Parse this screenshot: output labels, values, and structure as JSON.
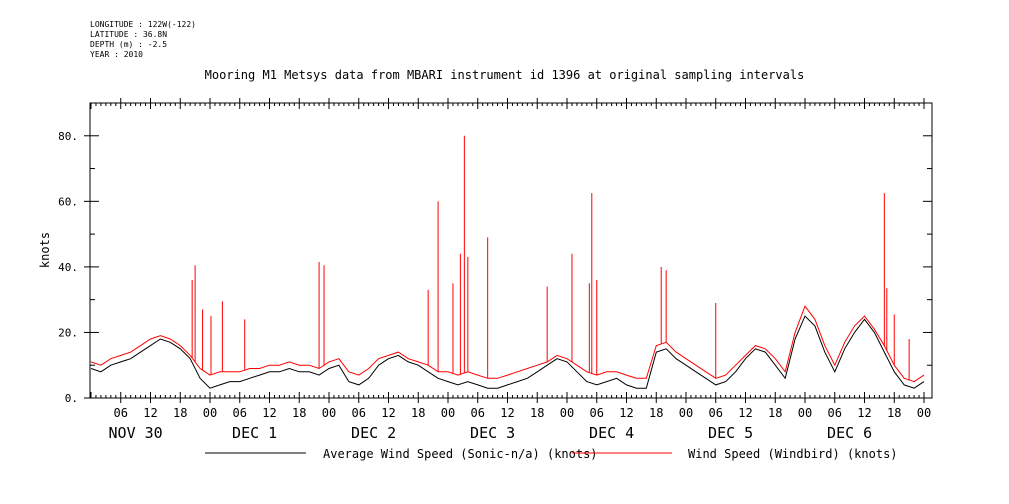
{
  "meta": {
    "longitude": "LONGITUDE : 122W(-122)",
    "latitude": "LATITUDE : 36.8N",
    "depth": "DEPTH (m) : -2.5",
    "year": "YEAR : 2010"
  },
  "chart_data": {
    "type": "line",
    "title": "Mooring M1 Metsys data from MBARI instrument id 1396 at original sampling intervals",
    "xlabel": "",
    "ylabel": "knots",
    "ylim": [
      0,
      90
    ],
    "y_ticks": [
      0,
      20,
      40,
      60,
      80
    ],
    "y_tick_labels": [
      "0.",
      "20.",
      "40.",
      "60.",
      "80."
    ],
    "xlim_hours": [
      0,
      168
    ],
    "hour_tick_labels": [
      "06",
      "12",
      "18",
      "00",
      "06",
      "12",
      "18",
      "00",
      "06",
      "12",
      "18",
      "00",
      "06",
      "12",
      "18",
      "00",
      "06",
      "12",
      "18",
      "00",
      "06",
      "12",
      "18",
      "00",
      "06",
      "12",
      "18",
      "00"
    ],
    "day_labels": [
      "NOV 30",
      "DEC  1",
      "DEC  2",
      "DEC  3",
      "DEC  4",
      "DEC  5",
      "DEC  6"
    ],
    "grid": false,
    "legend": "bottom",
    "series": [
      {
        "name": "Average Wind Speed (Sonic-n/a) (knots)",
        "color": "#000000",
        "x_hours": [
          0,
          2,
          4,
          6,
          8,
          10,
          12,
          14,
          16,
          18,
          20,
          22,
          24,
          26,
          28,
          30,
          32,
          34,
          36,
          38,
          40,
          42,
          44,
          46,
          48,
          50,
          52,
          54,
          56,
          58,
          60,
          62,
          64,
          66,
          68,
          70,
          72,
          74,
          76,
          78,
          80,
          82,
          84,
          86,
          88,
          90,
          92,
          94,
          96,
          98,
          100,
          102,
          104,
          106,
          108,
          110,
          112,
          114,
          116,
          118,
          120,
          122,
          124,
          126,
          128,
          130,
          132,
          134,
          136,
          138,
          140,
          142,
          144,
          146,
          148,
          150,
          152,
          154,
          156,
          158,
          160,
          162,
          164,
          166,
          168
        ],
        "values": [
          9,
          8,
          10,
          11,
          12,
          14,
          16,
          18,
          17,
          15,
          12,
          6,
          3,
          4,
          5,
          5,
          6,
          7,
          8,
          8,
          9,
          8,
          8,
          7,
          9,
          10,
          5,
          4,
          6,
          10,
          12,
          13,
          11,
          10,
          8,
          6,
          5,
          4,
          5,
          4,
          3,
          3,
          4,
          5,
          6,
          8,
          10,
          12,
          11,
          8,
          5,
          4,
          5,
          6,
          4,
          3,
          3,
          14,
          15,
          12,
          10,
          8,
          6,
          4,
          5,
          8,
          12,
          15,
          14,
          10,
          6,
          18,
          25,
          22,
          14,
          8,
          15,
          20,
          24,
          20,
          14,
          8,
          4,
          3,
          5
        ]
      },
      {
        "name": "Wind Speed (Windbird) (knots)",
        "color": "#ff0000",
        "x_hours": [
          0,
          2,
          4,
          6,
          8,
          10,
          12,
          14,
          16,
          18,
          20,
          22,
          24,
          26,
          28,
          30,
          32,
          34,
          36,
          38,
          40,
          42,
          44,
          46,
          48,
          50,
          52,
          54,
          56,
          58,
          60,
          62,
          64,
          66,
          68,
          70,
          72,
          74,
          76,
          78,
          80,
          82,
          84,
          86,
          88,
          90,
          92,
          94,
          96,
          98,
          100,
          102,
          104,
          106,
          108,
          110,
          112,
          114,
          116,
          118,
          120,
          122,
          124,
          126,
          128,
          130,
          132,
          134,
          136,
          138,
          140,
          142,
          144,
          146,
          148,
          150,
          152,
          154,
          156,
          158,
          160,
          162,
          164,
          166,
          168
        ],
        "values": [
          11,
          10,
          12,
          13,
          14,
          16,
          18,
          19,
          18,
          16,
          13,
          9,
          7,
          8,
          8,
          8,
          9,
          9,
          10,
          10,
          11,
          10,
          10,
          9,
          11,
          12,
          8,
          7,
          9,
          12,
          13,
          14,
          12,
          11,
          10,
          8,
          8,
          7,
          8,
          7,
          6,
          6,
          7,
          8,
          9,
          10,
          11,
          13,
          12,
          10,
          8,
          7,
          8,
          8,
          7,
          6,
          6,
          16,
          17,
          14,
          12,
          10,
          8,
          6,
          7,
          10,
          13,
          16,
          15,
          12,
          8,
          20,
          28,
          24,
          16,
          10,
          17,
          22,
          25,
          21,
          16,
          10,
          6,
          5,
          7
        ],
        "spikes": [
          {
            "x_hour": 20.4,
            "value": 36
          },
          {
            "x_hour": 21.0,
            "value": 40.5
          },
          {
            "x_hour": 22.5,
            "value": 27
          },
          {
            "x_hour": 24.2,
            "value": 25
          },
          {
            "x_hour": 26.5,
            "value": 29.5
          },
          {
            "x_hour": 31.0,
            "value": 24
          },
          {
            "x_hour": 46.0,
            "value": 41.5
          },
          {
            "x_hour": 47.0,
            "value": 40.5
          },
          {
            "x_hour": 68.0,
            "value": 33
          },
          {
            "x_hour": 70.0,
            "value": 60
          },
          {
            "x_hour": 73.0,
            "value": 35
          },
          {
            "x_hour": 74.5,
            "value": 44
          },
          {
            "x_hour": 75.3,
            "value": 80
          },
          {
            "x_hour": 76.0,
            "value": 43
          },
          {
            "x_hour": 80.0,
            "value": 49
          },
          {
            "x_hour": 92.0,
            "value": 34
          },
          {
            "x_hour": 97.0,
            "value": 44
          },
          {
            "x_hour": 100.5,
            "value": 35
          },
          {
            "x_hour": 101.0,
            "value": 62.5
          },
          {
            "x_hour": 102.0,
            "value": 36
          },
          {
            "x_hour": 115.0,
            "value": 40
          },
          {
            "x_hour": 116.0,
            "value": 39
          },
          {
            "x_hour": 126.0,
            "value": 29
          },
          {
            "x_hour": 160.0,
            "value": 62.5
          },
          {
            "x_hour": 160.5,
            "value": 33.5
          },
          {
            "x_hour": 162.0,
            "value": 25.5
          },
          {
            "x_hour": 165.0,
            "value": 18
          }
        ]
      }
    ]
  }
}
